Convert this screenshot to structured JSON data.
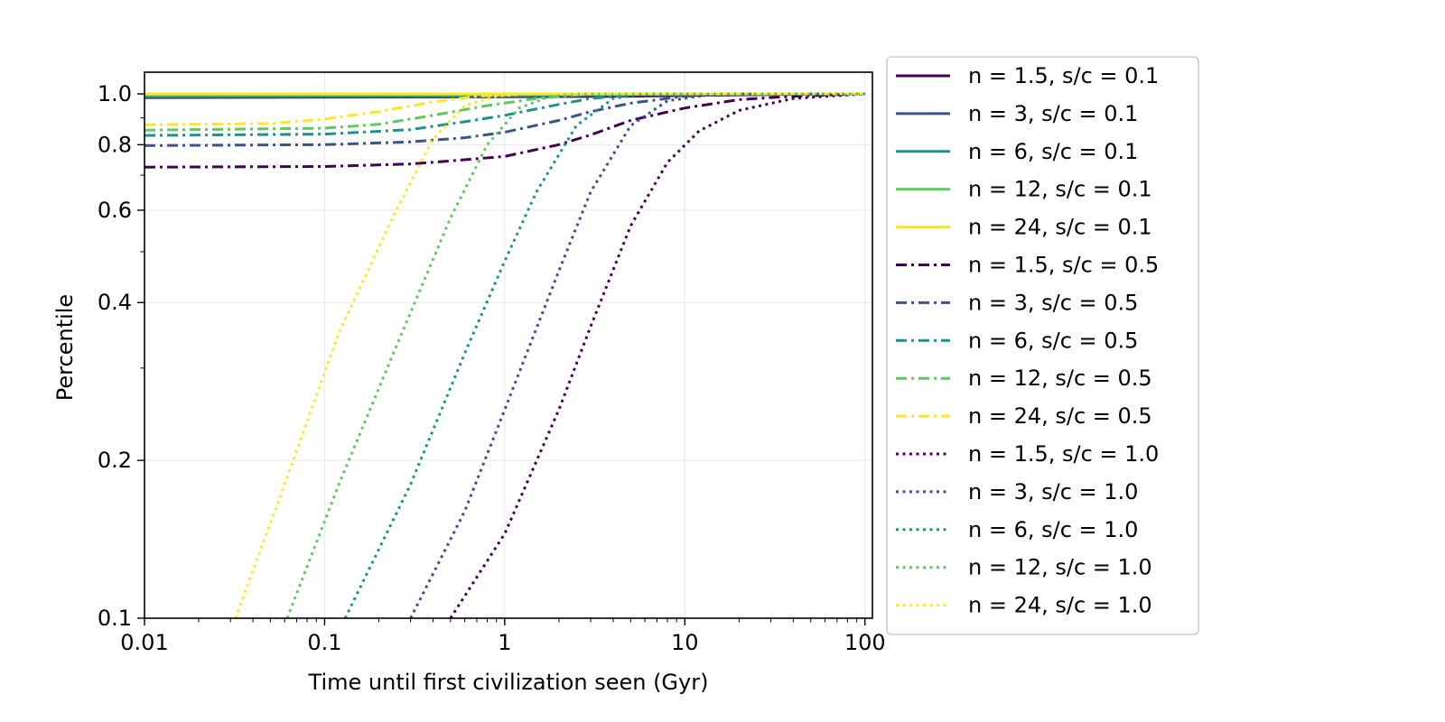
{
  "chart_data": {
    "type": "line",
    "xlabel": "Time until first civilization seen (Gyr)",
    "ylabel": "Percentile",
    "xscale": "log",
    "yscale": "log",
    "xlim": [
      0.01,
      110
    ],
    "ylim": [
      0.1,
      1.1
    ],
    "grid": true,
    "legend_position": "outside-right",
    "x_ticks": [
      {
        "value": 0.01,
        "label": "0.01"
      },
      {
        "value": 0.1,
        "label": "0.1"
      },
      {
        "value": 1,
        "label": "1"
      },
      {
        "value": 10,
        "label": "10"
      },
      {
        "value": 100,
        "label": "100"
      }
    ],
    "y_ticks": [
      {
        "value": 0.1,
        "label": "0.1"
      },
      {
        "value": 0.2,
        "label": "0.2"
      },
      {
        "value": 0.4,
        "label": "0.4"
      },
      {
        "value": 0.6,
        "label": "0.6"
      },
      {
        "value": 0.8,
        "label": "0.8"
      },
      {
        "value": 1.0,
        "label": "1.0"
      }
    ],
    "y_minor_ticks": [
      0.3,
      0.5,
      0.7,
      0.9
    ],
    "series": [
      {
        "name": "n = 1.5, s/c = 0.1",
        "color": "#440154",
        "dash": "solid",
        "points": [
          [
            0.01,
            0.984
          ],
          [
            1,
            0.987
          ],
          [
            5,
            0.99
          ],
          [
            20,
            0.996
          ],
          [
            100,
            1.0
          ]
        ]
      },
      {
        "name": "n = 3, s/c = 0.1",
        "color": "#3b528b",
        "dash": "solid",
        "points": [
          [
            0.01,
            0.986
          ],
          [
            1,
            0.989
          ],
          [
            5,
            0.995
          ],
          [
            20,
            0.999
          ],
          [
            100,
            1.0
          ]
        ]
      },
      {
        "name": "n = 6, s/c = 0.1",
        "color": "#21918c",
        "dash": "solid",
        "points": [
          [
            0.01,
            0.99
          ],
          [
            1,
            0.992
          ],
          [
            4,
            0.997
          ],
          [
            20,
            1.0
          ],
          [
            100,
            1.0
          ]
        ]
      },
      {
        "name": "n = 12, s/c = 0.1",
        "color": "#5ec962",
        "dash": "solid",
        "points": [
          [
            0.01,
            0.995
          ],
          [
            1,
            0.997
          ],
          [
            3,
            0.999
          ],
          [
            100,
            1.0
          ]
        ]
      },
      {
        "name": "n = 24, s/c = 0.1",
        "color": "#fde725",
        "dash": "solid",
        "points": [
          [
            0.01,
            1.0
          ],
          [
            1,
            1.0
          ],
          [
            100,
            1.0
          ]
        ]
      },
      {
        "name": "n = 1.5, s/c = 0.5",
        "color": "#440154",
        "dash": "dashdot",
        "points": [
          [
            0.01,
            0.725
          ],
          [
            0.1,
            0.727
          ],
          [
            0.3,
            0.735
          ],
          [
            0.5,
            0.745
          ],
          [
            1,
            0.76
          ],
          [
            2,
            0.8
          ],
          [
            3,
            0.835
          ],
          [
            5,
            0.89
          ],
          [
            10,
            0.94
          ],
          [
            20,
            0.975
          ],
          [
            40,
            0.99
          ],
          [
            100,
            1.0
          ]
        ]
      },
      {
        "name": "n = 3, s/c = 0.5",
        "color": "#3b528b",
        "dash": "dashdot",
        "points": [
          [
            0.01,
            0.797
          ],
          [
            0.1,
            0.8
          ],
          [
            0.3,
            0.81
          ],
          [
            0.6,
            0.825
          ],
          [
            1,
            0.845
          ],
          [
            2,
            0.89
          ],
          [
            3,
            0.925
          ],
          [
            5,
            0.96
          ],
          [
            10,
            0.99
          ],
          [
            20,
            1.0
          ],
          [
            100,
            1.0
          ]
        ]
      },
      {
        "name": "n = 6, s/c = 0.5",
        "color": "#21918c",
        "dash": "dashdot",
        "points": [
          [
            0.01,
            0.833
          ],
          [
            0.1,
            0.838
          ],
          [
            0.3,
            0.855
          ],
          [
            0.6,
            0.885
          ],
          [
            1,
            0.91
          ],
          [
            2,
            0.955
          ],
          [
            3,
            0.98
          ],
          [
            5,
            0.995
          ],
          [
            10,
            1.0
          ],
          [
            100,
            1.0
          ]
        ]
      },
      {
        "name": "n = 12, s/c = 0.5",
        "color": "#5ec962",
        "dash": "dashdot",
        "points": [
          [
            0.01,
            0.853
          ],
          [
            0.1,
            0.86
          ],
          [
            0.2,
            0.875
          ],
          [
            0.4,
            0.91
          ],
          [
            0.8,
            0.95
          ],
          [
            1.5,
            0.98
          ],
          [
            3,
            1.0
          ],
          [
            100,
            1.0
          ]
        ]
      },
      {
        "name": "n = 24, s/c = 0.5",
        "color": "#fde725",
        "dash": "dashdot",
        "points": [
          [
            0.01,
            0.873
          ],
          [
            0.05,
            0.878
          ],
          [
            0.1,
            0.895
          ],
          [
            0.2,
            0.925
          ],
          [
            0.4,
            0.965
          ],
          [
            0.7,
            0.99
          ],
          [
            1.2,
            1.0
          ],
          [
            100,
            1.0
          ]
        ]
      },
      {
        "name": "n = 1.5, s/c = 1.0",
        "color": "#440154",
        "dash": "dotted",
        "points": [
          [
            0.5,
            0.1
          ],
          [
            1,
            0.145
          ],
          [
            2,
            0.25
          ],
          [
            3,
            0.36
          ],
          [
            5,
            0.56
          ],
          [
            8,
            0.74
          ],
          [
            12,
            0.85
          ],
          [
            20,
            0.93
          ],
          [
            40,
            0.98
          ],
          [
            100,
            1.0
          ]
        ]
      },
      {
        "name": "n = 3, s/c = 1.0",
        "color": "#3b528b",
        "dash": "dotted",
        "points": [
          [
            0.3,
            0.1
          ],
          [
            0.6,
            0.16
          ],
          [
            1,
            0.25
          ],
          [
            2,
            0.46
          ],
          [
            3,
            0.65
          ],
          [
            5,
            0.87
          ],
          [
            8,
            0.97
          ],
          [
            15,
            1.0
          ],
          [
            100,
            1.0
          ]
        ]
      },
      {
        "name": "n = 6, s/c = 1.0",
        "color": "#21918c",
        "dash": "dotted",
        "points": [
          [
            0.13,
            0.1
          ],
          [
            0.3,
            0.18
          ],
          [
            0.6,
            0.32
          ],
          [
            1,
            0.48
          ],
          [
            1.5,
            0.65
          ],
          [
            2.5,
            0.87
          ],
          [
            4,
            0.98
          ],
          [
            6,
            1.0
          ],
          [
            100,
            1.0
          ]
        ]
      },
      {
        "name": "n = 12, s/c = 1.0",
        "color": "#5ec962",
        "dash": "dotted",
        "points": [
          [
            0.062,
            0.1
          ],
          [
            0.12,
            0.18
          ],
          [
            0.25,
            0.33
          ],
          [
            0.5,
            0.58
          ],
          [
            0.8,
            0.8
          ],
          [
            1.2,
            0.94
          ],
          [
            1.8,
            0.99
          ],
          [
            2.5,
            1.0
          ],
          [
            100,
            1.0
          ]
        ]
      },
      {
        "name": "n = 24, s/c = 1.0",
        "color": "#fde725",
        "dash": "dotted",
        "points": [
          [
            0.032,
            0.1
          ],
          [
            0.06,
            0.18
          ],
          [
            0.12,
            0.35
          ],
          [
            0.25,
            0.6
          ],
          [
            0.4,
            0.82
          ],
          [
            0.6,
            0.95
          ],
          [
            0.9,
            0.99
          ],
          [
            1.3,
            1.0
          ],
          [
            100,
            1.0
          ]
        ]
      }
    ]
  }
}
